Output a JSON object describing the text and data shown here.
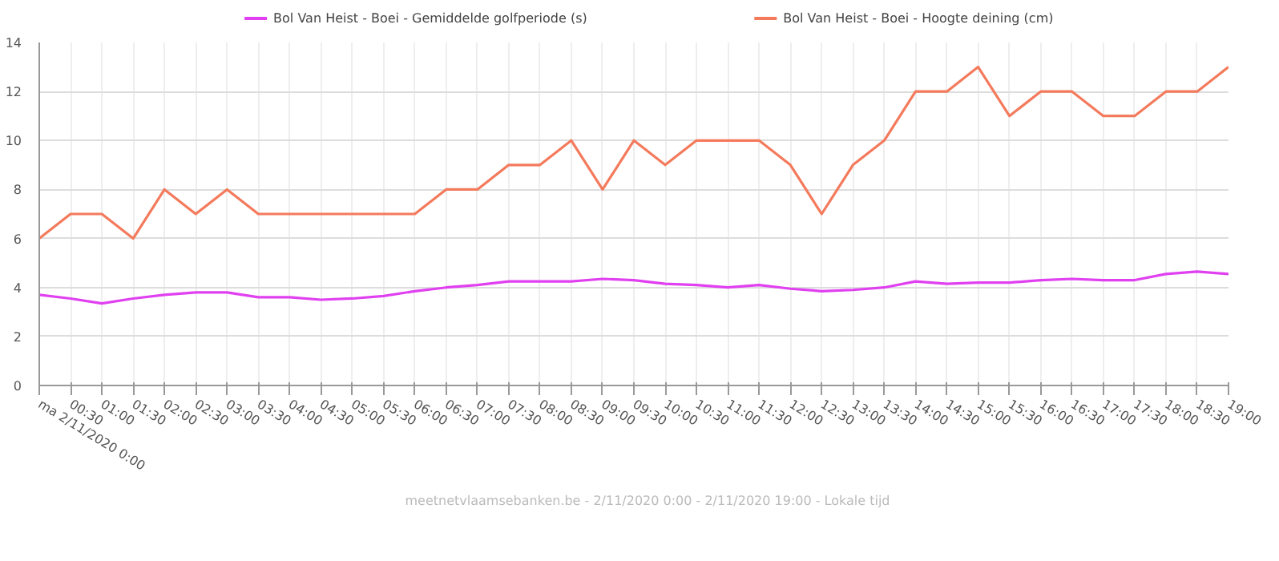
{
  "chart_data": {
    "type": "line",
    "categories": [
      "ma 2/11/2020 0:00",
      "00:30",
      "01:00",
      "01:30",
      "02:00",
      "02:30",
      "03:00",
      "03:30",
      "04:00",
      "04:30",
      "05:00",
      "05:30",
      "06:00",
      "06:30",
      "07:00",
      "07:30",
      "08:00",
      "08:30",
      "09:00",
      "09:30",
      "10:00",
      "10:30",
      "11:00",
      "11:30",
      "12:00",
      "12:30",
      "13:00",
      "13:30",
      "14:00",
      "14:30",
      "15:00",
      "15:30",
      "16:00",
      "16:30",
      "17:00",
      "17:30",
      "18:00",
      "18:30",
      "19:00"
    ],
    "series": [
      {
        "name": "Bol Van Heist - Boei - Gemiddelde golfperiode (s)",
        "color": "#e040f0",
        "values": [
          3.7,
          3.55,
          3.35,
          3.55,
          3.7,
          3.8,
          3.8,
          3.6,
          3.6,
          3.5,
          3.55,
          3.65,
          3.85,
          4.0,
          4.1,
          4.25,
          4.25,
          4.25,
          4.35,
          4.3,
          4.15,
          4.1,
          4.0,
          4.1,
          3.95,
          3.85,
          3.9,
          4.0,
          4.25,
          4.15,
          4.2,
          4.2,
          4.3,
          4.35,
          4.3,
          4.3,
          4.55,
          4.65,
          4.55
        ]
      },
      {
        "name": "Bol Van Heist - Boei - Hoogte deining (cm)",
        "color": "#f47a5c",
        "values": [
          6,
          7,
          7,
          6,
          8,
          7,
          8,
          7,
          7,
          7,
          7,
          7,
          7,
          8,
          8,
          9,
          9,
          10,
          8,
          10,
          9,
          10,
          10,
          10,
          9,
          7,
          9,
          10,
          12,
          12,
          13,
          11,
          12,
          12,
          11,
          11,
          12,
          12,
          13
        ]
      }
    ],
    "ylim": [
      0,
      14
    ],
    "yticks": [
      0,
      2,
      4,
      6,
      8,
      10,
      12,
      14
    ],
    "grid": true,
    "legend": "top",
    "marker": "none",
    "line_style": "solid",
    "annotations": [
      "meetnetvlaamsebanken.be - 2/11/2020 0:00 - 2/11/2020 19:00 - Lokale tijd"
    ]
  }
}
